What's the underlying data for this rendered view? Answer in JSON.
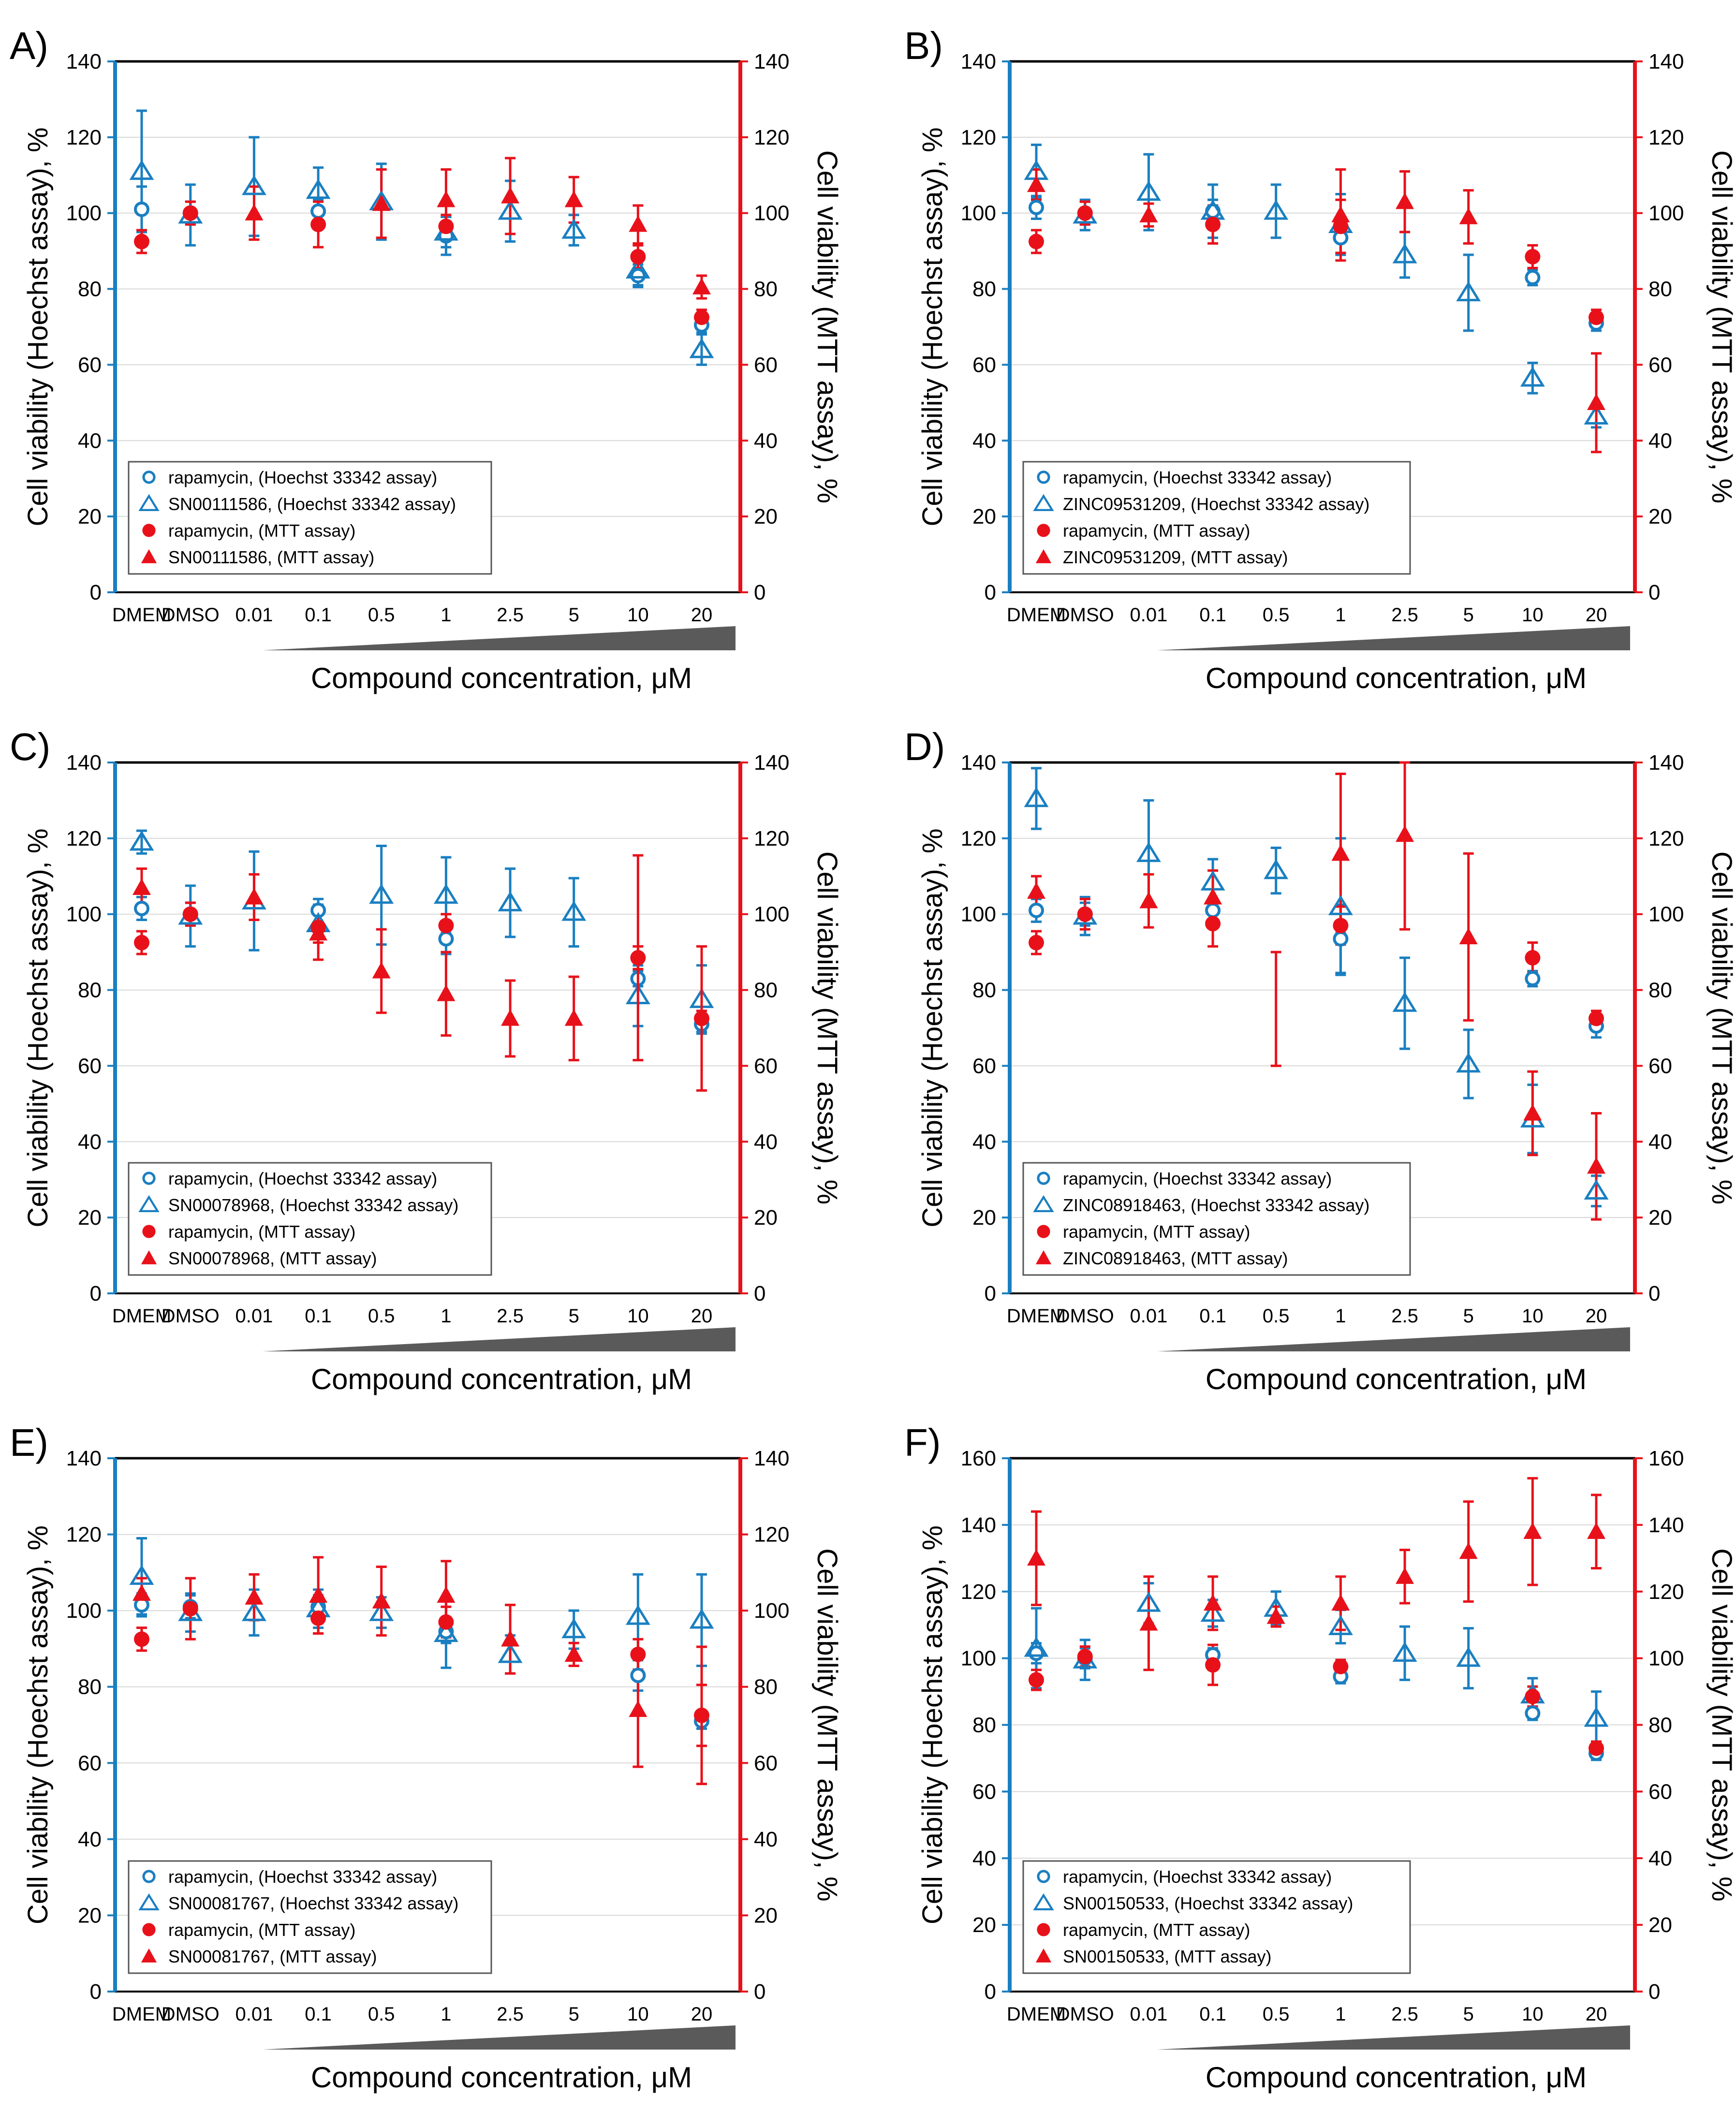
{
  "colors": {
    "blue": "#1a7fc1",
    "red": "#e8111a",
    "gray": "#d8d8d8",
    "ramp": "#5a5a5a"
  },
  "common": {
    "x_categories": [
      "DMEM",
      "DMSO",
      "0.01",
      "0.1",
      "0.5",
      "1",
      "2.5",
      "5",
      "10",
      "20"
    ],
    "xlabel": "Compound concentration, μM",
    "ylabel_left": "Cell viability (Hoechst assay), %",
    "ylabel_right": "Cell viability (MTT assay), %"
  },
  "chart_data": [
    {
      "type": "scatter",
      "panel": "A)",
      "compound": "SN00111586",
      "ylim": [
        0,
        140
      ],
      "yticks": [
        0,
        20,
        40,
        60,
        80,
        100,
        120,
        140
      ],
      "legend": [
        "rapamycin, (Hoechst 33342 assay)",
        "SN00111586, (Hoechst 33342 assay)",
        "rapamycin, (MTT assay)",
        "SN00111586, (MTT assay)"
      ],
      "series": [
        {
          "name": "rapamycin, (Hoechst 33342 assay)",
          "marker": "circle-open",
          "values": [
            101,
            100,
            null,
            100.5,
            null,
            94,
            null,
            null,
            83.5,
            70.5
          ],
          "err": [
            6,
            3,
            null,
            3,
            null,
            5,
            null,
            null,
            3,
            2
          ]
        },
        {
          "name": "SN00111586, (Hoechst 33342 assay)",
          "marker": "triangle-open",
          "values": [
            111,
            99.5,
            107,
            106,
            103,
            95,
            100.5,
            95.5,
            85,
            64
          ],
          "err": [
            16,
            8,
            13,
            6,
            10,
            4,
            8,
            4,
            4,
            4
          ]
        },
        {
          "name": "rapamycin, (MTT assay)",
          "marker": "circle-filled",
          "values": [
            92.5,
            100,
            null,
            97,
            null,
            96.5,
            null,
            null,
            88.5,
            72.5
          ],
          "err": [
            3,
            3,
            null,
            6,
            null,
            3,
            null,
            null,
            3,
            2
          ]
        },
        {
          "name": "SN00111586, (MTT assay)",
          "marker": "triangle-filled",
          "values": [
            null,
            null,
            100,
            null,
            102.5,
            103.5,
            104.5,
            103.5,
            97,
            80.5
          ],
          "err": [
            null,
            null,
            7,
            null,
            9,
            8,
            10,
            6,
            5,
            3
          ]
        }
      ]
    },
    {
      "type": "scatter",
      "panel": "B)",
      "compound": "ZINC09531209",
      "ylim": [
        0,
        140
      ],
      "yticks": [
        0,
        20,
        40,
        60,
        80,
        100,
        120,
        140
      ],
      "legend": [
        "rapamycin, (Hoechst 33342 assay)",
        "ZINC09531209, (Hoechst 33342 assay)",
        "rapamycin, (MTT assay)",
        "ZINC09531209, (MTT assay)"
      ],
      "series": [
        {
          "name": "rapamycin, (Hoechst 33342 assay)",
          "marker": "circle-open",
          "values": [
            101.5,
            100,
            null,
            100.5,
            null,
            93.5,
            null,
            null,
            83,
            71
          ],
          "err": [
            3,
            3,
            null,
            3,
            null,
            4,
            null,
            null,
            2,
            2
          ]
        },
        {
          "name": "ZINC09531209, (Hoechst 33342 assay)",
          "marker": "triangle-open",
          "values": [
            111,
            99.5,
            105.5,
            100.5,
            100.5,
            97,
            89,
            79,
            56.5,
            46.5
          ],
          "err": [
            7,
            4,
            10,
            7,
            7,
            8,
            6,
            10,
            4,
            3
          ]
        },
        {
          "name": "rapamycin, (MTT assay)",
          "marker": "circle-filled",
          "values": [
            92.5,
            100,
            null,
            97,
            null,
            96.5,
            null,
            null,
            88.5,
            72.5
          ],
          "err": [
            3,
            3,
            null,
            5,
            null,
            7,
            null,
            null,
            3,
            2
          ]
        },
        {
          "name": "ZINC09531209, (MTT assay)",
          "marker": "triangle-filled",
          "values": [
            107.5,
            null,
            99.5,
            null,
            null,
            99.5,
            103,
            99,
            null,
            50
          ],
          "err": [
            4,
            null,
            3,
            null,
            null,
            12,
            8,
            7,
            null,
            13
          ]
        }
      ]
    },
    {
      "type": "scatter",
      "panel": "C)",
      "compound": "SN00078968",
      "ylim": [
        0,
        140
      ],
      "yticks": [
        0,
        20,
        40,
        60,
        80,
        100,
        120,
        140
      ],
      "legend": [
        "rapamycin, (Hoechst 33342 assay)",
        "SN00078968, (Hoechst 33342 assay)",
        "rapamycin, (MTT assay)",
        "SN00078968, (MTT assay)"
      ],
      "series": [
        {
          "name": "rapamycin, (Hoechst 33342 assay)",
          "marker": "circle-open",
          "values": [
            101.5,
            100,
            null,
            101,
            null,
            93.5,
            null,
            null,
            83,
            71
          ],
          "err": [
            3,
            3,
            null,
            3,
            null,
            4,
            null,
            null,
            2,
            2
          ]
        },
        {
          "name": "SN00078968, (Hoechst 33342 assay)",
          "marker": "triangle-open",
          "values": [
            119,
            99.5,
            103.5,
            97.5,
            105,
            105,
            103,
            100.5,
            78.5,
            77.5
          ],
          "err": [
            3,
            8,
            13,
            5,
            13,
            10,
            9,
            9,
            8,
            9
          ]
        },
        {
          "name": "rapamycin, (MTT assay)",
          "marker": "circle-filled",
          "values": [
            92.5,
            100,
            null,
            96.5,
            null,
            97,
            null,
            null,
            88.5,
            72.5
          ],
          "err": [
            3,
            3,
            null,
            4,
            null,
            3,
            null,
            null,
            3,
            2
          ]
        },
        {
          "name": "SN00078968, (MTT assay)",
          "marker": "triangle-filled",
          "values": [
            107,
            null,
            104.5,
            95,
            85,
            79,
            72.5,
            72.5,
            null,
            null
          ],
          "err": [
            5,
            null,
            6,
            7,
            11,
            11,
            10,
            11,
            27,
            19
          ]
        }
      ]
    },
    {
      "type": "scatter",
      "panel": "D)",
      "compound": "ZINC08918463",
      "ylim": [
        0,
        140
      ],
      "yticks": [
        0,
        20,
        40,
        60,
        80,
        100,
        120,
        140
      ],
      "legend": [
        "rapamycin, (Hoechst 33342 assay)",
        "ZINC08918463, (Hoechst 33342 assay)",
        "rapamycin, (MTT assay)",
        "ZINC08918463, (MTT assay)"
      ],
      "series": [
        {
          "name": "rapamycin, (Hoechst 33342 assay)",
          "marker": "circle-open",
          "values": [
            101,
            100,
            null,
            101,
            null,
            93.5,
            null,
            null,
            83,
            70.5
          ],
          "err": [
            3,
            3,
            null,
            3,
            null,
            9,
            null,
            null,
            2,
            3
          ]
        },
        {
          "name": "ZINC08918463, (Hoechst 33342 assay)",
          "marker": "triangle-open",
          "values": [
            130.5,
            99.5,
            116,
            108.5,
            111.5,
            102,
            76.5,
            60.5,
            46,
            27
          ],
          "err": [
            8,
            5,
            14,
            6,
            6,
            18,
            12,
            9,
            9,
            4
          ]
        },
        {
          "name": "rapamycin, (MTT assay)",
          "marker": "circle-filled",
          "values": [
            92.5,
            100,
            null,
            97.5,
            null,
            97,
            null,
            null,
            88.5,
            72.5
          ],
          "err": [
            3,
            4,
            null,
            6,
            null,
            5,
            null,
            null,
            4,
            2
          ]
        },
        {
          "name": "ZINC08918463, (MTT assay)",
          "marker": "triangle-filled",
          "values": [
            106,
            null,
            103.5,
            104.5,
            null,
            116,
            121,
            94,
            47.5,
            33.5
          ],
          "err": [
            4,
            null,
            7,
            7,
            15,
            21,
            25,
            22,
            11,
            14
          ]
        }
      ]
    },
    {
      "type": "scatter",
      "panel": "E)",
      "compound": "SN00081767",
      "ylim": [
        0,
        140
      ],
      "yticks": [
        0,
        20,
        40,
        60,
        80,
        100,
        120,
        140
      ],
      "legend": [
        "rapamycin, (Hoechst 33342 assay)",
        "SN00081767, (Hoechst 33342 assay)",
        "rapamycin, (MTT assay)",
        "SN00081767, (MTT assay)"
      ],
      "series": [
        {
          "name": "rapamycin, (Hoechst 33342 assay)",
          "marker": "circle-open",
          "values": [
            101.5,
            101,
            null,
            101,
            null,
            94.5,
            null,
            null,
            83,
            71
          ],
          "err": [
            3,
            3,
            null,
            3,
            null,
            3,
            null,
            null,
            4,
            2
          ]
        },
        {
          "name": "SN00081767, (Hoechst 33342 assay)",
          "marker": "triangle-open",
          "values": [
            109,
            99.5,
            99.5,
            100.5,
            99.5,
            94,
            88.5,
            95,
            98.5,
            97.5
          ],
          "err": [
            10,
            5,
            6,
            5,
            4,
            9,
            5,
            5,
            11,
            12
          ]
        },
        {
          "name": "rapamycin, (MTT assay)",
          "marker": "circle-filled",
          "values": [
            92.5,
            100.5,
            null,
            98,
            null,
            97,
            null,
            null,
            88.5,
            72.5
          ],
          "err": [
            3,
            8,
            null,
            4,
            null,
            4,
            null,
            null,
            4,
            8
          ]
        },
        {
          "name": "SN00081767, (MTT assay)",
          "marker": "triangle-filled",
          "values": [
            104.5,
            null,
            103.5,
            104,
            102.5,
            104,
            92.5,
            88.5,
            74,
            null
          ],
          "err": [
            4,
            null,
            6,
            10,
            9,
            9,
            9,
            3,
            15,
            18
          ]
        }
      ]
    },
    {
      "type": "scatter",
      "panel": "F)",
      "compound": "SN00150533",
      "ylim": [
        0,
        160
      ],
      "yticks": [
        0,
        20,
        40,
        60,
        80,
        100,
        120,
        140,
        160
      ],
      "legend": [
        "rapamycin, (Hoechst 33342 assay)",
        "SN00150533, (Hoechst 33342 assay)",
        "rapamycin, (MTT assay)",
        "SN00150533, (MTT assay)"
      ],
      "series": [
        {
          "name": "rapamycin, (Hoechst 33342 assay)",
          "marker": "circle-open",
          "values": [
            101.5,
            100,
            null,
            101,
            null,
            94.5,
            null,
            null,
            83.5,
            71.5
          ],
          "err": [
            3,
            3,
            null,
            2,
            null,
            2,
            null,
            null,
            2,
            2
          ]
        },
        {
          "name": "SN00150533, (Hoechst 33342 assay)",
          "marker": "triangle-open",
          "values": [
            103,
            99.5,
            116.5,
            113.5,
            115,
            109.5,
            101.5,
            100,
            89,
            82
          ],
          "err": [
            12,
            6,
            6,
            4,
            5,
            5,
            8,
            9,
            5,
            8
          ]
        },
        {
          "name": "rapamycin, (MTT assay)",
          "marker": "circle-filled",
          "values": [
            93.5,
            100.5,
            null,
            98,
            null,
            97.5,
            null,
            null,
            88.5,
            73
          ],
          "err": [
            3,
            3,
            null,
            6,
            null,
            2,
            null,
            null,
            3,
            2
          ]
        },
        {
          "name": "SN00150533, (MTT assay)",
          "marker": "triangle-filled",
          "values": [
            130,
            null,
            110.5,
            116.5,
            112.5,
            116.5,
            124.5,
            132,
            138,
            138
          ],
          "err": [
            14,
            null,
            14,
            8,
            3,
            8,
            8,
            15,
            16,
            11
          ]
        }
      ]
    }
  ]
}
